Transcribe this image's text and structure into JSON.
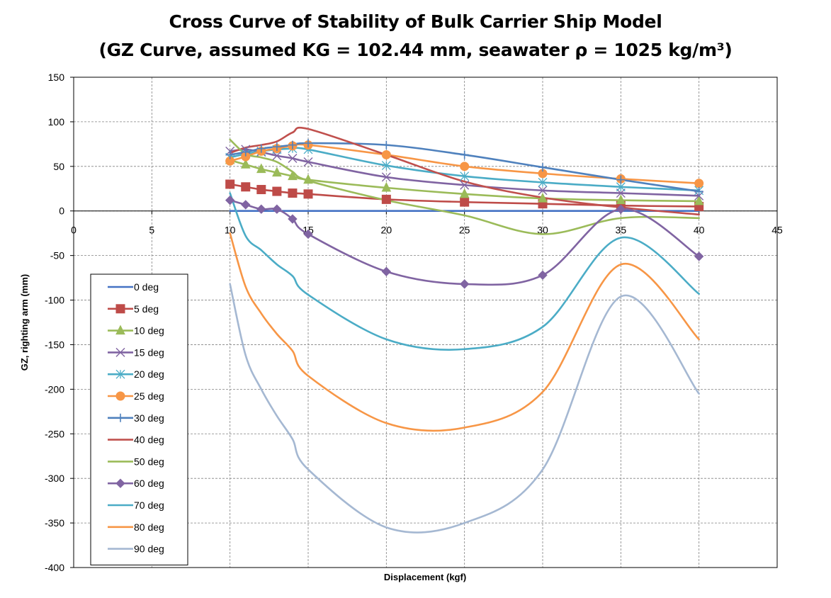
{
  "chart_data": {
    "type": "line",
    "title": "Cross Curve of Stability of Bulk Carrier Ship Model",
    "subtitle": "(GZ Curve, assumed KG = 102.44 mm, seawater ρ = 1025 kg/m³)",
    "xlabel": "Displacement (kgf)",
    "ylabel": "GZ, righting arm (mm)",
    "xlim": [
      0,
      45
    ],
    "ylim": [
      -400,
      150
    ],
    "xticks": [
      0,
      5,
      10,
      15,
      20,
      25,
      30,
      35,
      40,
      45
    ],
    "yticks": [
      150,
      100,
      50,
      0,
      -50,
      -100,
      -150,
      -200,
      -250,
      -300,
      -350,
      -400
    ],
    "grid": true,
    "legend_position": "bottom-left",
    "series": [
      {
        "name": "0 deg",
        "color": "#4472c4",
        "marker": "none",
        "x": [
          10,
          11,
          12,
          13,
          14,
          15,
          20,
          25,
          30,
          35,
          40
        ],
        "y": [
          0,
          0,
          0,
          0,
          0,
          0,
          0,
          0,
          0,
          0,
          0
        ]
      },
      {
        "name": "5 deg",
        "color": "#be4b48",
        "marker": "square",
        "x": [
          10,
          11,
          12,
          13,
          14,
          15,
          20,
          25,
          30,
          35,
          40
        ],
        "y": [
          30,
          27,
          24,
          22,
          20,
          19,
          13,
          10,
          8,
          6,
          5
        ]
      },
      {
        "name": "10 deg",
        "color": "#9bbb59",
        "marker": "triangle",
        "x": [
          10,
          11,
          12,
          13,
          14,
          15,
          20,
          25,
          30,
          35,
          40
        ],
        "y": [
          57,
          52,
          47,
          43,
          39,
          35,
          26,
          19,
          14,
          12,
          11
        ]
      },
      {
        "name": "15 deg",
        "color": "#8064a2",
        "marker": "x",
        "x": [
          10,
          11,
          12,
          13,
          14,
          15,
          20,
          25,
          30,
          35,
          40
        ],
        "y": [
          67,
          69,
          66,
          62,
          59,
          55,
          38,
          29,
          23,
          20,
          17
        ]
      },
      {
        "name": "20 deg",
        "color": "#4bacc6",
        "marker": "star",
        "x": [
          10,
          11,
          12,
          13,
          14,
          15,
          20,
          25,
          30,
          35,
          40
        ],
        "y": [
          60,
          64,
          67,
          69,
          70,
          69,
          51,
          39,
          32,
          27,
          23
        ]
      },
      {
        "name": "25 deg",
        "color": "#f79646",
        "marker": "circle",
        "x": [
          10,
          11,
          12,
          13,
          14,
          15,
          20,
          25,
          30,
          35,
          40
        ],
        "y": [
          56,
          61,
          67,
          70,
          73,
          74,
          63,
          50,
          42,
          36,
          31
        ]
      },
      {
        "name": "30 deg",
        "color": "#4f81bd",
        "marker": "plus",
        "x": [
          10,
          11,
          12,
          13,
          14,
          15,
          20,
          25,
          30,
          35,
          40
        ],
        "y": [
          63,
          66,
          70,
          72,
          74,
          76,
          74,
          63,
          49,
          35,
          22
        ]
      },
      {
        "name": "40 deg",
        "color": "#c0504d",
        "marker": "none",
        "x": [
          10,
          11,
          12,
          13,
          14,
          15,
          20,
          25,
          30,
          35,
          40
        ],
        "y": [
          65,
          71,
          74,
          78,
          88,
          92,
          63,
          33,
          15,
          4,
          -4
        ]
      },
      {
        "name": "50 deg",
        "color": "#9bbb59",
        "marker": "none",
        "x": [
          10,
          11,
          12,
          13,
          14,
          15,
          20,
          25,
          30,
          35,
          40
        ],
        "y": [
          80,
          64,
          60,
          55,
          44,
          34,
          12,
          -5,
          -26,
          -8,
          -8
        ]
      },
      {
        "name": "60 deg",
        "color": "#8064a2",
        "marker": "diamond",
        "x": [
          10,
          11,
          12,
          13,
          14,
          15,
          20,
          25,
          30,
          35,
          40
        ],
        "y": [
          12,
          7,
          2,
          2,
          -9,
          -26,
          -68,
          -82,
          -72,
          2,
          -51
        ]
      },
      {
        "name": "70 deg",
        "color": "#4bacc6",
        "marker": "none",
        "x": [
          10,
          11,
          12,
          13,
          14,
          15,
          20,
          25,
          30,
          35,
          40
        ],
        "y": [
          20,
          -28,
          -44,
          -60,
          -73,
          -94,
          -144,
          -155,
          -130,
          -30,
          -93
        ]
      },
      {
        "name": "80 deg",
        "color": "#f79646",
        "marker": "none",
        "x": [
          10,
          11,
          12,
          13,
          14,
          15,
          20,
          25,
          30,
          35,
          40
        ],
        "y": [
          -25,
          -85,
          -115,
          -138,
          -157,
          -185,
          -238,
          -243,
          -203,
          -60,
          -144
        ]
      },
      {
        "name": "90 deg",
        "color": "#a5b8d2",
        "marker": "none",
        "x": [
          10,
          11,
          12,
          13,
          14,
          15,
          20,
          25,
          30,
          35,
          40
        ],
        "y": [
          -82,
          -162,
          -200,
          -230,
          -256,
          -290,
          -355,
          -350,
          -290,
          -96,
          -205
        ]
      }
    ]
  }
}
